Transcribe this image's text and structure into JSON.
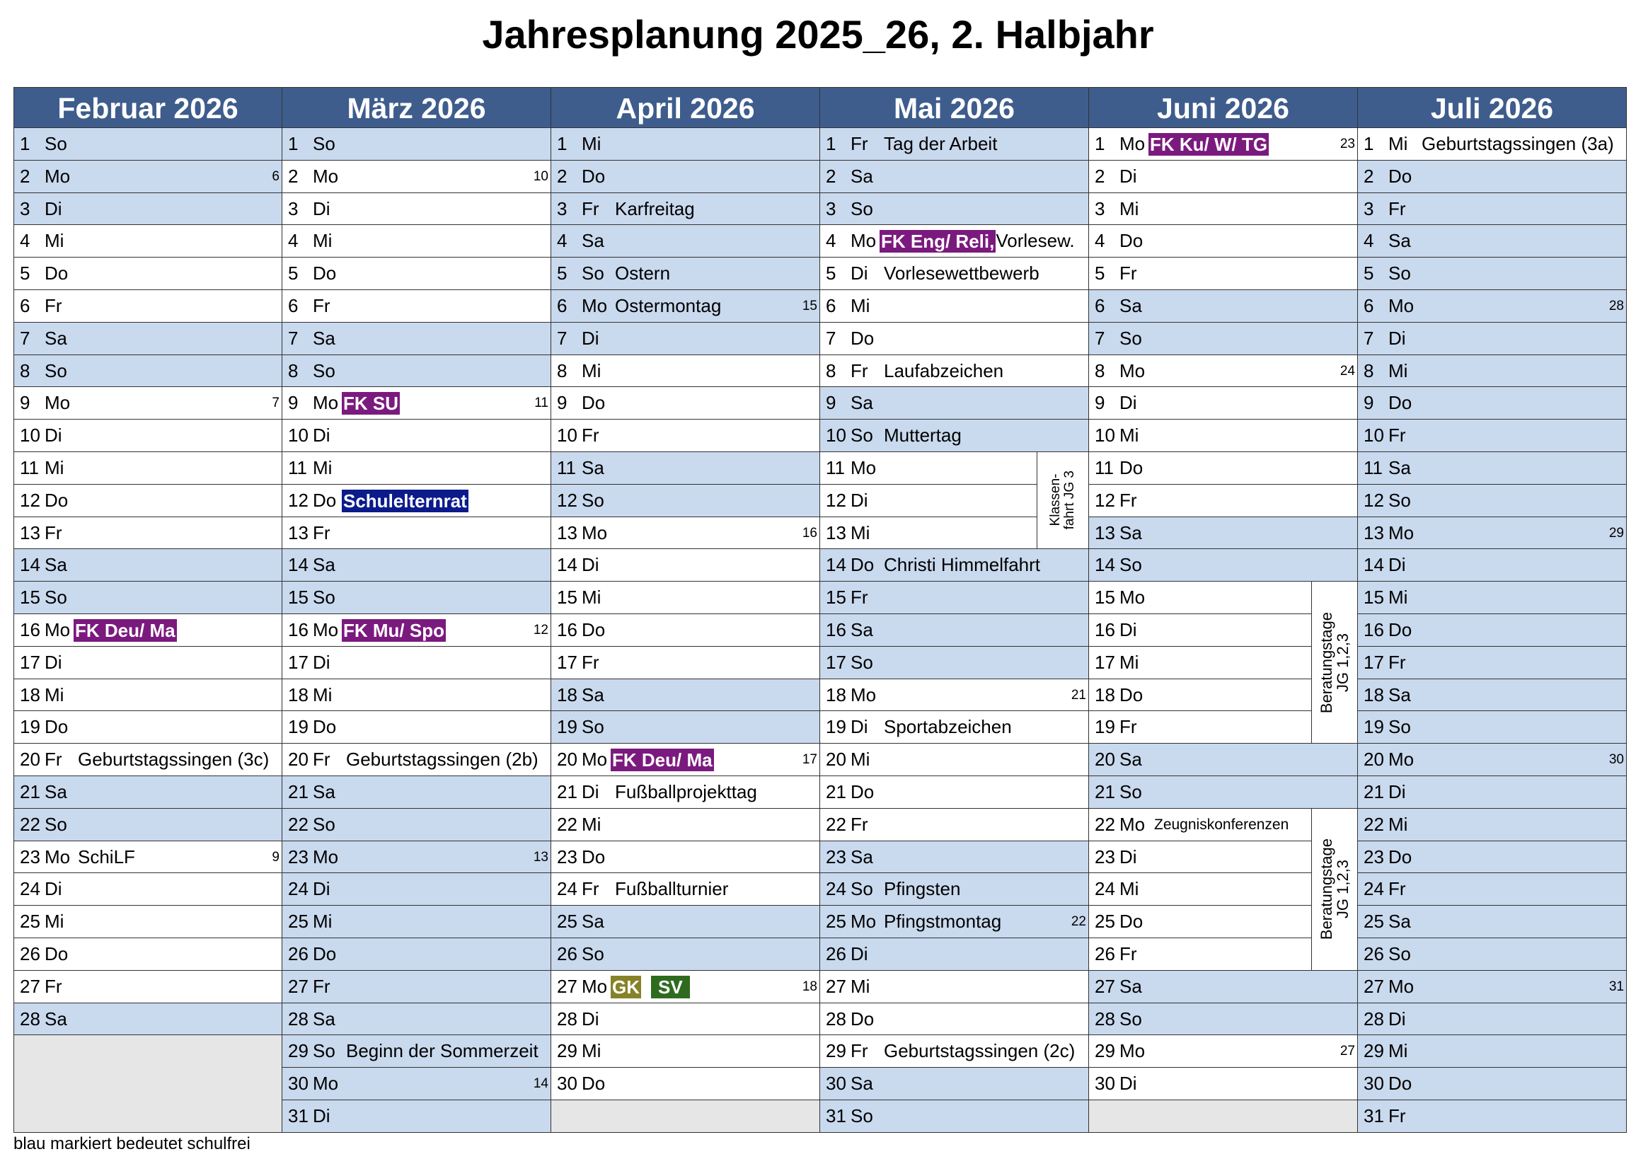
{
  "title": "Jahresplanung 2025_26, 2. Halbjahr",
  "footer": "blau markiert bedeutet schulfrei",
  "colors": {
    "header": "#3e5d8d",
    "schulfrei": "#c9d9ee",
    "empty": "#e6e6e6",
    "purple": "#7b1a7e",
    "navy": "#0b1b8c",
    "olive": "#868228",
    "green": "#2e6b1f"
  },
  "months": [
    {
      "title": "Februar 2026",
      "days": [
        {
          "d": "1",
          "wd": "So",
          "free": true
        },
        {
          "d": "2",
          "wd": "Mo",
          "free": true,
          "kw": "6"
        },
        {
          "d": "3",
          "wd": "Di",
          "free": true
        },
        {
          "d": "4",
          "wd": "Mi"
        },
        {
          "d": "5",
          "wd": "Do"
        },
        {
          "d": "6",
          "wd": "Fr"
        },
        {
          "d": "7",
          "wd": "Sa",
          "free": true
        },
        {
          "d": "8",
          "wd": "So",
          "free": true
        },
        {
          "d": "9",
          "wd": "Mo",
          "kw": "7"
        },
        {
          "d": "10",
          "wd": "Di"
        },
        {
          "d": "11",
          "wd": "Mi"
        },
        {
          "d": "12",
          "wd": "Do"
        },
        {
          "d": "13",
          "wd": "Fr"
        },
        {
          "d": "14",
          "wd": "Sa",
          "free": true
        },
        {
          "d": "15",
          "wd": "So",
          "free": true
        },
        {
          "d": "16",
          "wd": "Mo",
          "ev": [
            {
              "t": "FK Deu/ Ma",
              "s": "purple"
            }
          ]
        },
        {
          "d": "17",
          "wd": "Di"
        },
        {
          "d": "18",
          "wd": "Mi"
        },
        {
          "d": "19",
          "wd": "Do"
        },
        {
          "d": "20",
          "wd": "Fr",
          "ev": [
            {
              "t": "Geburtstagssingen (3c)",
              "s": "plain"
            }
          ]
        },
        {
          "d": "21",
          "wd": "Sa",
          "free": true
        },
        {
          "d": "22",
          "wd": "So",
          "free": true
        },
        {
          "d": "23",
          "wd": "Mo",
          "kw": "9",
          "ev": [
            {
              "t": "SchiLF",
              "s": "plain"
            }
          ]
        },
        {
          "d": "24",
          "wd": "Di"
        },
        {
          "d": "25",
          "wd": "Mi"
        },
        {
          "d": "26",
          "wd": "Do"
        },
        {
          "d": "27",
          "wd": "Fr"
        },
        {
          "d": "28",
          "wd": "Sa",
          "free": true
        }
      ]
    },
    {
      "title": "März 2026",
      "days": [
        {
          "d": "1",
          "wd": "So",
          "free": true
        },
        {
          "d": "2",
          "wd": "Mo",
          "kw": "10"
        },
        {
          "d": "3",
          "wd": "Di"
        },
        {
          "d": "4",
          "wd": "Mi"
        },
        {
          "d": "5",
          "wd": "Do"
        },
        {
          "d": "6",
          "wd": "Fr"
        },
        {
          "d": "7",
          "wd": "Sa",
          "free": true
        },
        {
          "d": "8",
          "wd": "So",
          "free": true
        },
        {
          "d": "9",
          "wd": "Mo",
          "kw": "11",
          "ev": [
            {
              "t": "FK SU",
              "s": "purple"
            }
          ]
        },
        {
          "d": "10",
          "wd": "Di"
        },
        {
          "d": "11",
          "wd": "Mi"
        },
        {
          "d": "12",
          "wd": "Do",
          "ev": [
            {
              "t": "Schulelternrat",
              "s": "navy"
            }
          ]
        },
        {
          "d": "13",
          "wd": "Fr"
        },
        {
          "d": "14",
          "wd": "Sa",
          "free": true
        },
        {
          "d": "15",
          "wd": "So",
          "free": true
        },
        {
          "d": "16",
          "wd": "Mo",
          "kw": "12",
          "ev": [
            {
              "t": "FK Mu/ Spo",
              "s": "purple"
            }
          ]
        },
        {
          "d": "17",
          "wd": "Di"
        },
        {
          "d": "18",
          "wd": "Mi"
        },
        {
          "d": "19",
          "wd": "Do"
        },
        {
          "d": "20",
          "wd": "Fr",
          "ev": [
            {
              "t": "Geburtstagssingen (2b)",
              "s": "plain"
            }
          ]
        },
        {
          "d": "21",
          "wd": "Sa",
          "free": true
        },
        {
          "d": "22",
          "wd": "So",
          "free": true
        },
        {
          "d": "23",
          "wd": "Mo",
          "free": true,
          "kw": "13"
        },
        {
          "d": "24",
          "wd": "Di",
          "free": true
        },
        {
          "d": "25",
          "wd": "Mi",
          "free": true
        },
        {
          "d": "26",
          "wd": "Do",
          "free": true
        },
        {
          "d": "27",
          "wd": "Fr",
          "free": true
        },
        {
          "d": "28",
          "wd": "Sa",
          "free": true
        },
        {
          "d": "29",
          "wd": "So",
          "free": true,
          "ev": [
            {
              "t": "Beginn der Sommerzeit",
              "s": "plain"
            }
          ]
        },
        {
          "d": "30",
          "wd": "Mo",
          "free": true,
          "kw": "14"
        },
        {
          "d": "31",
          "wd": "Di",
          "free": true
        }
      ]
    },
    {
      "title": "April 2026",
      "days": [
        {
          "d": "1",
          "wd": "Mi",
          "free": true
        },
        {
          "d": "2",
          "wd": "Do",
          "free": true
        },
        {
          "d": "3",
          "wd": "Fr",
          "free": true,
          "ev": [
            {
              "t": "Karfreitag",
              "s": "plain"
            }
          ]
        },
        {
          "d": "4",
          "wd": "Sa",
          "free": true
        },
        {
          "d": "5",
          "wd": "So",
          "free": true,
          "ev": [
            {
              "t": "Ostern",
              "s": "plain"
            }
          ]
        },
        {
          "d": "6",
          "wd": "Mo",
          "free": true,
          "kw": "15",
          "ev": [
            {
              "t": "Ostermontag",
              "s": "plain"
            }
          ]
        },
        {
          "d": "7",
          "wd": "Di",
          "free": true
        },
        {
          "d": "8",
          "wd": "Mi"
        },
        {
          "d": "9",
          "wd": "Do"
        },
        {
          "d": "10",
          "wd": "Fr"
        },
        {
          "d": "11",
          "wd": "Sa",
          "free": true
        },
        {
          "d": "12",
          "wd": "So",
          "free": true
        },
        {
          "d": "13",
          "wd": "Mo",
          "kw": "16"
        },
        {
          "d": "14",
          "wd": "Di"
        },
        {
          "d": "15",
          "wd": "Mi"
        },
        {
          "d": "16",
          "wd": "Do"
        },
        {
          "d": "17",
          "wd": "Fr"
        },
        {
          "d": "18",
          "wd": "Sa",
          "free": true
        },
        {
          "d": "19",
          "wd": "So",
          "free": true
        },
        {
          "d": "20",
          "wd": "Mo",
          "kw": "17",
          "ev": [
            {
              "t": "FK Deu/ Ma",
              "s": "purple"
            }
          ]
        },
        {
          "d": "21",
          "wd": "Di",
          "ev": [
            {
              "t": "Fußballprojekttag",
              "s": "plain"
            }
          ]
        },
        {
          "d": "22",
          "wd": "Mi"
        },
        {
          "d": "23",
          "wd": "Do"
        },
        {
          "d": "24",
          "wd": "Fr",
          "ev": [
            {
              "t": "Fußballturnier",
              "s": "plain"
            }
          ]
        },
        {
          "d": "25",
          "wd": "Sa",
          "free": true
        },
        {
          "d": "26",
          "wd": "So",
          "free": true
        },
        {
          "d": "27",
          "wd": "Mo",
          "kw": "18",
          "ev": [
            {
              "t": "GK",
              "s": "olive"
            },
            {
              "t": "SV",
              "s": "green"
            }
          ]
        },
        {
          "d": "28",
          "wd": "Di"
        },
        {
          "d": "29",
          "wd": "Mi"
        },
        {
          "d": "30",
          "wd": "Do"
        }
      ]
    },
    {
      "title": "Mai 2026",
      "spans": [
        {
          "from": 11,
          "to": 13,
          "lines": [
            "Klassen-",
            "fahrt JG 3"
          ]
        }
      ],
      "days": [
        {
          "d": "1",
          "wd": "Fr",
          "free": true,
          "ev": [
            {
              "t": "Tag der Arbeit",
              "s": "plain"
            }
          ]
        },
        {
          "d": "2",
          "wd": "Sa",
          "free": true
        },
        {
          "d": "3",
          "wd": "So",
          "free": true
        },
        {
          "d": "4",
          "wd": "Mo",
          "ev": [
            {
              "t": "FK Eng/ Reli,",
              "s": "purple"
            },
            {
              "t": "Vorlesew.",
              "s": "tight"
            }
          ]
        },
        {
          "d": "5",
          "wd": "Di",
          "ev": [
            {
              "t": "Vorlesewettbewerb",
              "s": "plain"
            }
          ]
        },
        {
          "d": "6",
          "wd": "Mi"
        },
        {
          "d": "7",
          "wd": "Do"
        },
        {
          "d": "8",
          "wd": "Fr",
          "ev": [
            {
              "t": "Laufabzeichen",
              "s": "plain"
            }
          ]
        },
        {
          "d": "9",
          "wd": "Sa",
          "free": true
        },
        {
          "d": "10",
          "wd": "So",
          "free": true,
          "ev": [
            {
              "t": "Muttertag",
              "s": "plain"
            }
          ]
        },
        {
          "d": "11",
          "wd": "Mo"
        },
        {
          "d": "12",
          "wd": "Di"
        },
        {
          "d": "13",
          "wd": "Mi"
        },
        {
          "d": "14",
          "wd": "Do",
          "free": true,
          "ev": [
            {
              "t": "Christi Himmelfahrt",
              "s": "plain"
            }
          ]
        },
        {
          "d": "15",
          "wd": "Fr",
          "free": true
        },
        {
          "d": "16",
          "wd": "Sa",
          "free": true
        },
        {
          "d": "17",
          "wd": "So",
          "free": true
        },
        {
          "d": "18",
          "wd": "Mo",
          "kw": "21"
        },
        {
          "d": "19",
          "wd": "Di",
          "ev": [
            {
              "t": "Sportabzeichen",
              "s": "plain"
            }
          ]
        },
        {
          "d": "20",
          "wd": "Mi"
        },
        {
          "d": "21",
          "wd": "Do"
        },
        {
          "d": "22",
          "wd": "Fr"
        },
        {
          "d": "23",
          "wd": "Sa",
          "free": true
        },
        {
          "d": "24",
          "wd": "So",
          "free": true,
          "ev": [
            {
              "t": "Pfingsten",
              "s": "plain"
            }
          ]
        },
        {
          "d": "25",
          "wd": "Mo",
          "free": true,
          "kw": "22",
          "ev": [
            {
              "t": "Pfingstmontag",
              "s": "plain"
            }
          ]
        },
        {
          "d": "26",
          "wd": "Di",
          "free": true
        },
        {
          "d": "27",
          "wd": "Mi"
        },
        {
          "d": "28",
          "wd": "Do"
        },
        {
          "d": "29",
          "wd": "Fr",
          "ev": [
            {
              "t": "Geburtstagssingen (2c)",
              "s": "plain"
            }
          ]
        },
        {
          "d": "30",
          "wd": "Sa",
          "free": true
        },
        {
          "d": "31",
          "wd": "So",
          "free": true
        }
      ]
    },
    {
      "title": "Juni 2026",
      "spans": [
        {
          "from": 15,
          "to": 19,
          "lines": [
            "Beratungstage",
            "JG 1,2,3"
          ]
        },
        {
          "from": 22,
          "to": 26,
          "lines": [
            "Beratungstage",
            "JG 1,2,3"
          ]
        }
      ],
      "days": [
        {
          "d": "1",
          "wd": "Mo",
          "kw": "23",
          "ev": [
            {
              "t": "FK Ku/ W/ TG",
              "s": "purple"
            }
          ]
        },
        {
          "d": "2",
          "wd": "Di"
        },
        {
          "d": "3",
          "wd": "Mi"
        },
        {
          "d": "4",
          "wd": "Do"
        },
        {
          "d": "5",
          "wd": "Fr"
        },
        {
          "d": "6",
          "wd": "Sa",
          "free": true
        },
        {
          "d": "7",
          "wd": "So",
          "free": true
        },
        {
          "d": "8",
          "wd": "Mo",
          "kw": "24"
        },
        {
          "d": "9",
          "wd": "Di"
        },
        {
          "d": "10",
          "wd": "Mi"
        },
        {
          "d": "11",
          "wd": "Do"
        },
        {
          "d": "12",
          "wd": "Fr"
        },
        {
          "d": "13",
          "wd": "Sa",
          "free": true
        },
        {
          "d": "14",
          "wd": "So",
          "free": true
        },
        {
          "d": "15",
          "wd": "Mo"
        },
        {
          "d": "16",
          "wd": "Di"
        },
        {
          "d": "17",
          "wd": "Mi"
        },
        {
          "d": "18",
          "wd": "Do"
        },
        {
          "d": "19",
          "wd": "Fr"
        },
        {
          "d": "20",
          "wd": "Sa",
          "free": true
        },
        {
          "d": "21",
          "wd": "So",
          "free": true
        },
        {
          "d": "22",
          "wd": "Mo",
          "ev": [
            {
              "t": "Zeugniskonferenzen",
              "s": "small"
            }
          ]
        },
        {
          "d": "23",
          "wd": "Di"
        },
        {
          "d": "24",
          "wd": "Mi"
        },
        {
          "d": "25",
          "wd": "Do"
        },
        {
          "d": "26",
          "wd": "Fr"
        },
        {
          "d": "27",
          "wd": "Sa",
          "free": true
        },
        {
          "d": "28",
          "wd": "So",
          "free": true
        },
        {
          "d": "29",
          "wd": "Mo",
          "kw": "27"
        },
        {
          "d": "30",
          "wd": "Di"
        }
      ]
    },
    {
      "title": "Juli 2026",
      "days": [
        {
          "d": "1",
          "wd": "Mi",
          "ev": [
            {
              "t": "Geburtstagssingen (3a)",
              "s": "plain"
            }
          ]
        },
        {
          "d": "2",
          "wd": "Do",
          "free": true
        },
        {
          "d": "3",
          "wd": "Fr",
          "free": true
        },
        {
          "d": "4",
          "wd": "Sa",
          "free": true
        },
        {
          "d": "5",
          "wd": "So",
          "free": true
        },
        {
          "d": "6",
          "wd": "Mo",
          "free": true,
          "kw": "28"
        },
        {
          "d": "7",
          "wd": "Di",
          "free": true
        },
        {
          "d": "8",
          "wd": "Mi",
          "free": true
        },
        {
          "d": "9",
          "wd": "Do",
          "free": true
        },
        {
          "d": "10",
          "wd": "Fr",
          "free": true
        },
        {
          "d": "11",
          "wd": "Sa",
          "free": true
        },
        {
          "d": "12",
          "wd": "So",
          "free": true
        },
        {
          "d": "13",
          "wd": "Mo",
          "free": true,
          "kw": "29"
        },
        {
          "d": "14",
          "wd": "Di",
          "free": true
        },
        {
          "d": "15",
          "wd": "Mi",
          "free": true
        },
        {
          "d": "16",
          "wd": "Do",
          "free": true
        },
        {
          "d": "17",
          "wd": "Fr",
          "free": true
        },
        {
          "d": "18",
          "wd": "Sa",
          "free": true
        },
        {
          "d": "19",
          "wd": "So",
          "free": true
        },
        {
          "d": "20",
          "wd": "Mo",
          "free": true,
          "kw": "30"
        },
        {
          "d": "21",
          "wd": "Di",
          "free": true
        },
        {
          "d": "22",
          "wd": "Mi",
          "free": true
        },
        {
          "d": "23",
          "wd": "Do",
          "free": true
        },
        {
          "d": "24",
          "wd": "Fr",
          "free": true
        },
        {
          "d": "25",
          "wd": "Sa",
          "free": true
        },
        {
          "d": "26",
          "wd": "So",
          "free": true
        },
        {
          "d": "27",
          "wd": "Mo",
          "free": true,
          "kw": "31"
        },
        {
          "d": "28",
          "wd": "Di",
          "free": true
        },
        {
          "d": "29",
          "wd": "Mi",
          "free": true
        },
        {
          "d": "30",
          "wd": "Do",
          "free": true
        },
        {
          "d": "31",
          "wd": "Fr",
          "free": true
        }
      ]
    }
  ]
}
